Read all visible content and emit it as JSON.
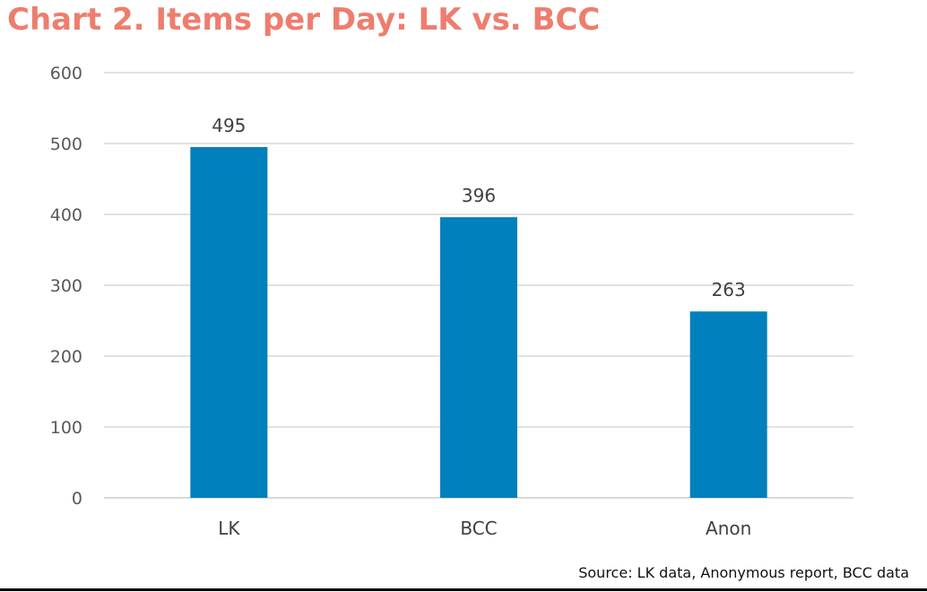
{
  "colors": {
    "title": "#ee7d6e",
    "bar": "#0080bc",
    "gridline": "#d9d9d9",
    "tick_text": "#595959",
    "label_text": "#404040",
    "source_text": "#111111"
  },
  "chart_data": {
    "type": "bar",
    "title": "Chart 2. Items per Day: LK vs. BCC",
    "source": "Source: LK data, Anonymous report, BCC data",
    "categories": [
      "LK",
      "BCC",
      "Anon"
    ],
    "values": [
      495,
      396,
      263
    ],
    "data_labels": [
      "495",
      "396",
      "263"
    ],
    "xlabel": "",
    "ylabel": "",
    "ylim": [
      0,
      600
    ],
    "yticks": [
      0,
      100,
      200,
      300,
      400,
      500,
      600
    ],
    "ytick_labels": [
      "0",
      "100",
      "200",
      "300",
      "400",
      "500",
      "600"
    ],
    "grid": true,
    "legend": "none"
  }
}
